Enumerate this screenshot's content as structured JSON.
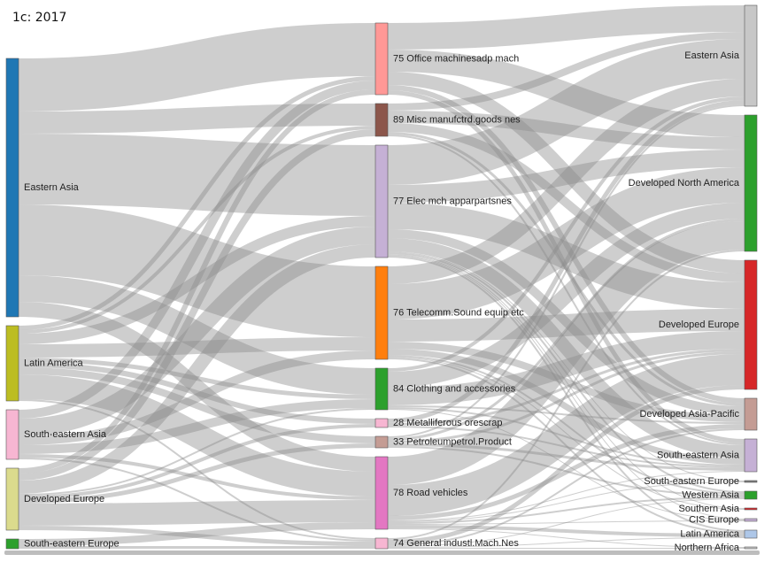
{
  "chart_data": {
    "type": "sankey",
    "title": "1c: 2017",
    "nodes": [
      {
        "label": "Eastern Asia",
        "color": "#1f77b4"
      },
      {
        "label": "Latin America",
        "color": "#bcbd22"
      },
      {
        "label": "South-eastern Asia",
        "color": "#f7b6d2"
      },
      {
        "label": "Developed Europe",
        "color": "#dbdb8d"
      },
      {
        "label": "South-eastern Europe",
        "color": "#2ca02c"
      },
      {
        "label": "75 Office machinesadp mach",
        "color": "#ff9896"
      },
      {
        "label": "89 Misc manufctrd.goods nes",
        "color": "#8c564b"
      },
      {
        "label": "77 Elec mch apparpartsnes",
        "color": "#c5b0d5"
      },
      {
        "label": "76 Telecomm.Sound equip etc",
        "color": "#ff7f0e"
      },
      {
        "label": "84 Clothing and accessories",
        "color": "#2ca02c"
      },
      {
        "label": "28 Metalliferous orescrap",
        "color": "#f7b6d2"
      },
      {
        "label": "33 Petroleumpetrol.Product",
        "color": "#c49c94"
      },
      {
        "label": "78 Road vehicles",
        "color": "#e377c2"
      },
      {
        "label": "74 General industl.Mach.Nes",
        "color": "#f7b6d2"
      },
      {
        "label": "Eastern Asia",
        "color": "#c7c7c7"
      },
      {
        "label": "Developed North America",
        "color": "#2ca02c"
      },
      {
        "label": "Developed Europe",
        "color": "#d62728"
      },
      {
        "label": "Developed Asia-Pacific",
        "color": "#c49c94"
      },
      {
        "label": "South-eastern Asia",
        "color": "#c5b0d5"
      },
      {
        "label": "South-eastern Europe",
        "color": "#7f7f7f"
      },
      {
        "label": "Western Asia",
        "color": "#2ca02c"
      },
      {
        "label": "Southern Asia",
        "color": "#d62728"
      },
      {
        "label": "CIS Europe",
        "color": "#c5b0d5"
      },
      {
        "label": "Latin America",
        "color": "#aec7e8"
      },
      {
        "label": "Northern Africa",
        "color": "#c7c7c7"
      }
    ],
    "links": [
      {
        "source": 0,
        "target": 5,
        "value": 60
      },
      {
        "source": 1,
        "target": 5,
        "value": 5
      },
      {
        "source": 2,
        "target": 5,
        "value": 10
      },
      {
        "source": 3,
        "target": 5,
        "value": 6
      },
      {
        "source": 0,
        "target": 6,
        "value": 25
      },
      {
        "source": 1,
        "target": 6,
        "value": 4
      },
      {
        "source": 3,
        "target": 6,
        "value": 8
      },
      {
        "source": 0,
        "target": 7,
        "value": 80
      },
      {
        "source": 1,
        "target": 7,
        "value": 12
      },
      {
        "source": 2,
        "target": 7,
        "value": 20
      },
      {
        "source": 3,
        "target": 7,
        "value": 15
      },
      {
        "source": 0,
        "target": 8,
        "value": 80
      },
      {
        "source": 1,
        "target": 8,
        "value": 15
      },
      {
        "source": 2,
        "target": 8,
        "value": 10
      },
      {
        "source": 0,
        "target": 9,
        "value": 30
      },
      {
        "source": 1,
        "target": 9,
        "value": 5
      },
      {
        "source": 2,
        "target": 9,
        "value": 10
      },
      {
        "source": 3,
        "target": 9,
        "value": 2
      },
      {
        "source": 1,
        "target": 10,
        "value": 6
      },
      {
        "source": 3,
        "target": 10,
        "value": 4
      },
      {
        "source": 1,
        "target": 11,
        "value": 8
      },
      {
        "source": 3,
        "target": 11,
        "value": 5
      },
      {
        "source": 0,
        "target": 12,
        "value": 17
      },
      {
        "source": 1,
        "target": 12,
        "value": 28
      },
      {
        "source": 2,
        "target": 12,
        "value": 4
      },
      {
        "source": 3,
        "target": 12,
        "value": 25
      },
      {
        "source": 4,
        "target": 12,
        "value": 8
      },
      {
        "source": 1,
        "target": 13,
        "value": 2
      },
      {
        "source": 2,
        "target": 13,
        "value": 2
      },
      {
        "source": 3,
        "target": 13,
        "value": 5
      },
      {
        "source": 4,
        "target": 13,
        "value": 3
      },
      {
        "source": 5,
        "target": 14,
        "value": 30
      },
      {
        "source": 5,
        "target": 15,
        "value": 25
      },
      {
        "source": 5,
        "target": 16,
        "value": 15
      },
      {
        "source": 5,
        "target": 17,
        "value": 6
      },
      {
        "source": 5,
        "target": 18,
        "value": 5
      },
      {
        "source": 6,
        "target": 14,
        "value": 8
      },
      {
        "source": 6,
        "target": 15,
        "value": 14
      },
      {
        "source": 6,
        "target": 16,
        "value": 10
      },
      {
        "source": 6,
        "target": 17,
        "value": 3
      },
      {
        "source": 6,
        "target": 18,
        "value": 2
      },
      {
        "source": 7,
        "target": 14,
        "value": 45
      },
      {
        "source": 7,
        "target": 15,
        "value": 20
      },
      {
        "source": 7,
        "target": 16,
        "value": 30
      },
      {
        "source": 7,
        "target": 17,
        "value": 10
      },
      {
        "source": 7,
        "target": 18,
        "value": 15
      },
      {
        "source": 7,
        "target": 19,
        "value": 1
      },
      {
        "source": 7,
        "target": 20,
        "value": 2
      },
      {
        "source": 7,
        "target": 21,
        "value": 1
      },
      {
        "source": 7,
        "target": 22,
        "value": 1
      },
      {
        "source": 7,
        "target": 23,
        "value": 2
      },
      {
        "source": 8,
        "target": 14,
        "value": 20
      },
      {
        "source": 8,
        "target": 15,
        "value": 40
      },
      {
        "source": 8,
        "target": 16,
        "value": 25
      },
      {
        "source": 8,
        "target": 17,
        "value": 8
      },
      {
        "source": 8,
        "target": 18,
        "value": 7
      },
      {
        "source": 8,
        "target": 20,
        "value": 2
      },
      {
        "source": 8,
        "target": 21,
        "value": 1
      },
      {
        "source": 8,
        "target": 23,
        "value": 2
      },
      {
        "source": 9,
        "target": 14,
        "value": 4
      },
      {
        "source": 9,
        "target": 15,
        "value": 18
      },
      {
        "source": 9,
        "target": 16,
        "value": 20
      },
      {
        "source": 9,
        "target": 17,
        "value": 2
      },
      {
        "source": 9,
        "target": 18,
        "value": 2
      },
      {
        "source": 9,
        "target": 22,
        "value": 1
      },
      {
        "source": 10,
        "target": 14,
        "value": 5
      },
      {
        "source": 10,
        "target": 16,
        "value": 3
      },
      {
        "source": 10,
        "target": 18,
        "value": 2
      },
      {
        "source": 11,
        "target": 14,
        "value": 2
      },
      {
        "source": 11,
        "target": 15,
        "value": 3
      },
      {
        "source": 11,
        "target": 16,
        "value": 3
      },
      {
        "source": 11,
        "target": 18,
        "value": 3
      },
      {
        "source": 11,
        "target": 20,
        "value": 2
      },
      {
        "source": 12,
        "target": 15,
        "value": 32
      },
      {
        "source": 12,
        "target": 16,
        "value": 35
      },
      {
        "source": 12,
        "target": 17,
        "value": 5
      },
      {
        "source": 12,
        "target": 18,
        "value": 1
      },
      {
        "source": 12,
        "target": 19,
        "value": 1
      },
      {
        "source": 12,
        "target": 20,
        "value": 2
      },
      {
        "source": 12,
        "target": 22,
        "value": 1
      },
      {
        "source": 12,
        "target": 23,
        "value": 4
      },
      {
        "source": 12,
        "target": 24,
        "value": 1
      },
      {
        "source": 13,
        "target": 15,
        "value": 2
      },
      {
        "source": 13,
        "target": 16,
        "value": 5
      },
      {
        "source": 13,
        "target": 17,
        "value": 2
      },
      {
        "source": 13,
        "target": 20,
        "value": 1
      },
      {
        "source": 13,
        "target": 23,
        "value": 1
      },
      {
        "source": 13,
        "target": 24,
        "value": 1
      }
    ]
  }
}
